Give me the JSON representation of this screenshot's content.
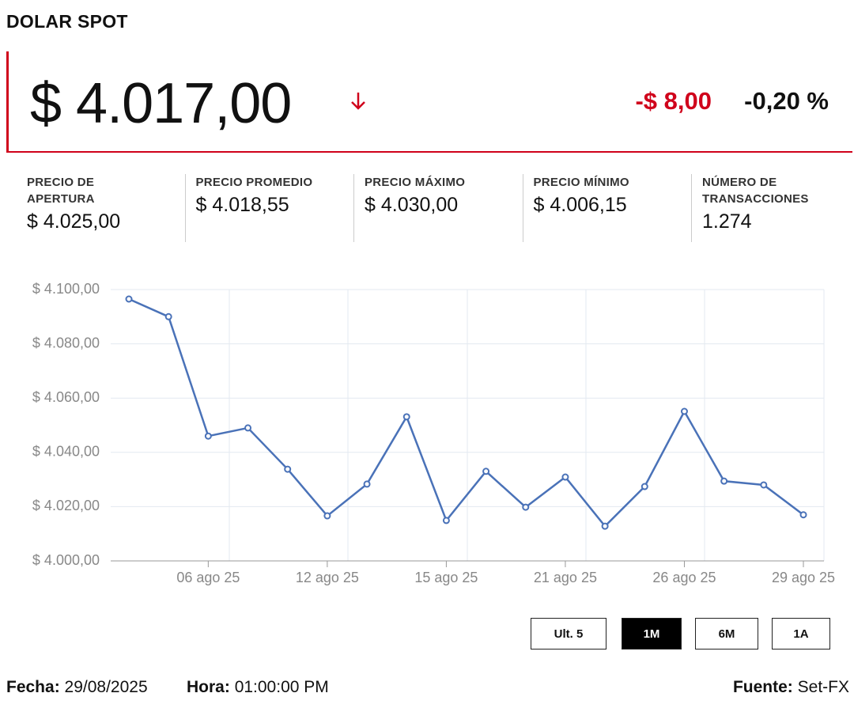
{
  "header": {
    "title": "DOLAR SPOT",
    "price": "$ 4.017,00",
    "change": "-$ 8,00",
    "change_percent": "-0,20 %"
  },
  "stats": [
    {
      "label": "PRECIO DE APERTURA",
      "value": "$ 4.025,00"
    },
    {
      "label": "PRECIO PROMEDIO",
      "value": "$ 4.018,55"
    },
    {
      "label": "PRECIO MÁXIMO",
      "value": "$ 4.030,00"
    },
    {
      "label": "PRECIO MÍNIMO",
      "value": "$ 4.006,15"
    },
    {
      "label": "NÚMERO DE TRANSACCIONES",
      "value": "1.274"
    }
  ],
  "chart_data": {
    "type": "line",
    "categories": [
      null,
      null,
      "06 ago 25",
      null,
      null,
      "12 ago 25",
      null,
      null,
      "15 ago 25",
      null,
      null,
      "21 ago 25",
      null,
      null,
      "26 ago 25",
      null,
      null,
      "29 ago 25"
    ],
    "series": [
      {
        "color": "#4a72b8",
        "values": [
          4096.5,
          4090,
          4046,
          4049,
          4033.8,
          4016.6,
          4028.3,
          4053.1,
          4014.9,
          4033,
          4019.8,
          4030.9,
          4012.8,
          4027.4,
          4055.1,
          4029.4,
          4028,
          4017
        ]
      }
    ],
    "ylim": [
      4000,
      4100
    ],
    "yticks": [
      {
        "value": 4000,
        "label": "$ 4.000,00"
      },
      {
        "value": 4020,
        "label": "$ 4.020,00"
      },
      {
        "value": 4040,
        "label": "$ 4.040,00"
      },
      {
        "value": 4060,
        "label": "$ 4.060,00"
      },
      {
        "value": 4080,
        "label": "$ 4.080,00"
      },
      {
        "value": 4100,
        "label": "$ 4.100,00"
      }
    ],
    "grid": true
  },
  "buttons": [
    "Ult. 5",
    "1M",
    "6M",
    "1A"
  ],
  "footer": {
    "date_label": "Fecha:",
    "date": "29/08/2025",
    "time_label": "Hora:",
    "time": "01:00:00 PM",
    "source_label": "Fuente:",
    "source": "Set-FX"
  }
}
